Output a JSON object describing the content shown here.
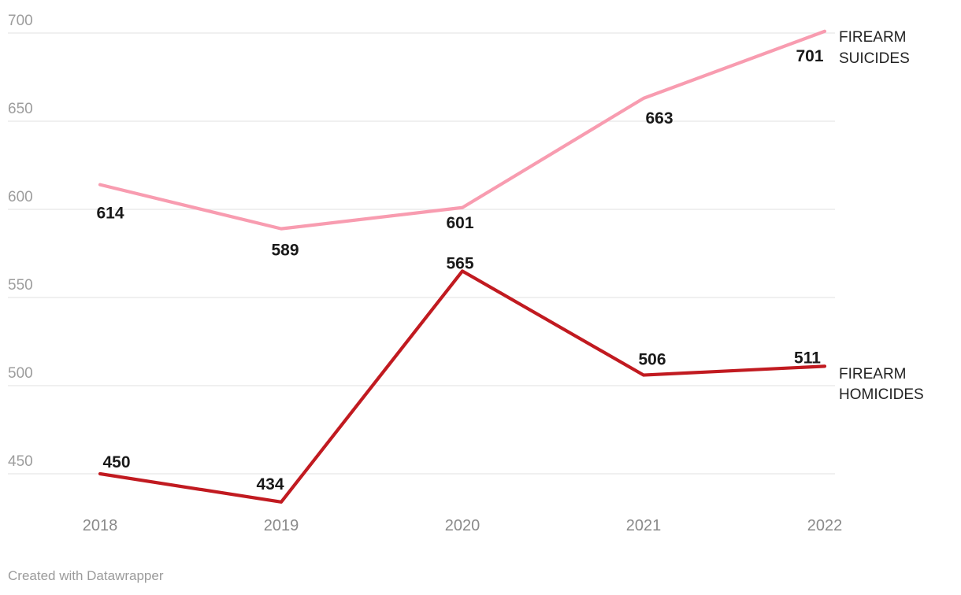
{
  "chart_data": {
    "type": "line",
    "categories": [
      "2018",
      "2019",
      "2020",
      "2021",
      "2022"
    ],
    "series": [
      {
        "name": "FIREARM SUICIDES",
        "values": [
          614,
          589,
          601,
          663,
          701
        ],
        "color": "#f89cb0"
      },
      {
        "name": "FIREARM HOMICIDES",
        "values": [
          450,
          434,
          565,
          506,
          511
        ],
        "color": "#c11a20"
      }
    ],
    "y_ticks": [
      450,
      500,
      550,
      600,
      650,
      700
    ],
    "ylim": [
      430,
      710
    ],
    "grid": "horizontal",
    "legend_position": "right-of-line-ends",
    "value_labels": "shown-at-every-point",
    "title": "",
    "xlabel": "",
    "ylabel": ""
  },
  "colors": {
    "background": "#ffffff",
    "suicides_line": "#f89cb0",
    "homicides_line": "#c11a20",
    "gridline": "#e6e6e6",
    "y_tick_text": "#9d9d9d",
    "x_tick_text": "#8a8a8a",
    "value_label_text": "#191919",
    "legend_text": "#222222",
    "footer_text": "#9b9b9b"
  },
  "footer": {
    "credit": "Created with Datawrapper"
  }
}
